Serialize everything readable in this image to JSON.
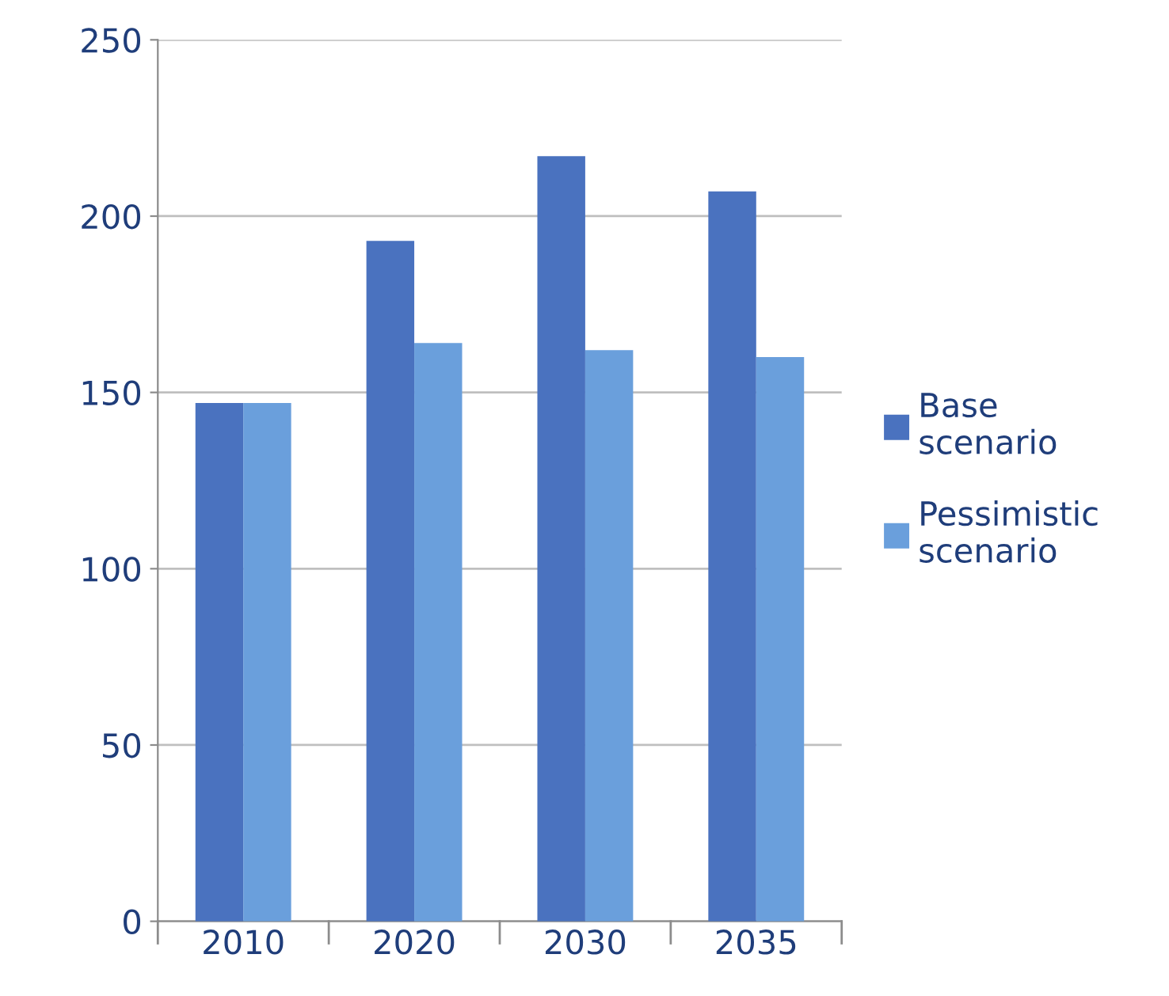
{
  "chart_data": {
    "type": "bar",
    "categories": [
      "2010",
      "2020",
      "2030",
      "2035"
    ],
    "series": [
      {
        "name": "Base\nscenario",
        "color": "#4a72bf",
        "values": [
          147,
          193,
          217,
          207
        ]
      },
      {
        "name": "Pessimistic\nscenario",
        "color": "#6a9fdc",
        "values": [
          147,
          164,
          162,
          160
        ]
      }
    ],
    "ylim": [
      0,
      250
    ],
    "yticks": [
      0,
      50,
      100,
      150,
      200,
      250
    ],
    "grid": "y",
    "legend": "right"
  }
}
